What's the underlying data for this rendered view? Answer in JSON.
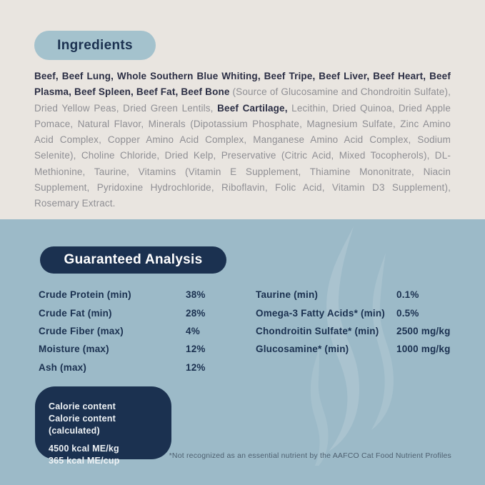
{
  "colors": {
    "top_bg": "#e9e5e0",
    "bottom_bg": "#9cbac8",
    "pill_light": "#a4c2cd",
    "navy": "#1b3150",
    "ing_bold": "#2b2e44",
    "ing_regular": "#8f8f94",
    "box_text": "#eef2f5",
    "footnote": "#4e6070"
  },
  "ingredients": {
    "title": "Ingredients",
    "segments": [
      {
        "bold": true,
        "text": "Beef, Beef Lung, Whole Southern Blue Whiting, Beef Tripe, Beef Liver, Beef Heart, Beef Plasma, Beef Spleen, Beef Fat, Beef Bone"
      },
      {
        "bold": false,
        "text": " (Source of Glucosamine and Chondroitin Sulfate), Dried Yellow Peas, Dried Green Lentils, "
      },
      {
        "bold": true,
        "text": "Beef Cartilage,"
      },
      {
        "bold": false,
        "text": " Lecithin, Dried Quinoa, Dried Apple Pomace, Natural Flavor, Minerals (Dipotassium Phosphate, Magnesium Sulfate, Zinc Amino Acid Complex, Copper Amino Acid Complex, Manganese Amino Acid Complex, Sodium Selenite), Choline Chloride, Dried Kelp, Preservative (Citric Acid, Mixed Tocopherols), DL-Methionine, Taurine, Vitamins (Vitamin E Supplement, Thiamine Mononitrate, Niacin Supplement, Pyridoxine Hydrochloride, Riboflavin, Folic Acid, Vitamin D3 Supplement), Rosemary Extract."
      }
    ]
  },
  "guaranteed_analysis": {
    "title": "Guaranteed Analysis",
    "left_rows": [
      {
        "label": "Crude Protein (min)",
        "value": "38%"
      },
      {
        "label": "Crude Fat (min)",
        "value": "28%"
      },
      {
        "label": "Crude Fiber (max)",
        "value": "4%"
      },
      {
        "label": "Moisture (max)",
        "value": "12%"
      },
      {
        "label": "Ash (max)",
        "value": "12%"
      }
    ],
    "right_rows": [
      {
        "label": "Taurine (min)",
        "value": "0.1%"
      },
      {
        "label": "Omega-3 Fatty Acids* (min)",
        "value": "0.5%"
      },
      {
        "label": "Chondroitin Sulfate* (min)",
        "value": "2500 mg/kg"
      },
      {
        "label": "Glucosamine* (min)",
        "value": "1000 mg/kg"
      }
    ],
    "calorie_box": {
      "heading_lines": [
        "Calorie content",
        "Calorie content (calculated)"
      ],
      "value_lines": [
        "4500 kcal ME/kg",
        "365 kcal ME/cup"
      ]
    },
    "footnote": "*Not recognized as an essential nutrient by the AAFCO Cat Food Nutrient Profiles"
  }
}
